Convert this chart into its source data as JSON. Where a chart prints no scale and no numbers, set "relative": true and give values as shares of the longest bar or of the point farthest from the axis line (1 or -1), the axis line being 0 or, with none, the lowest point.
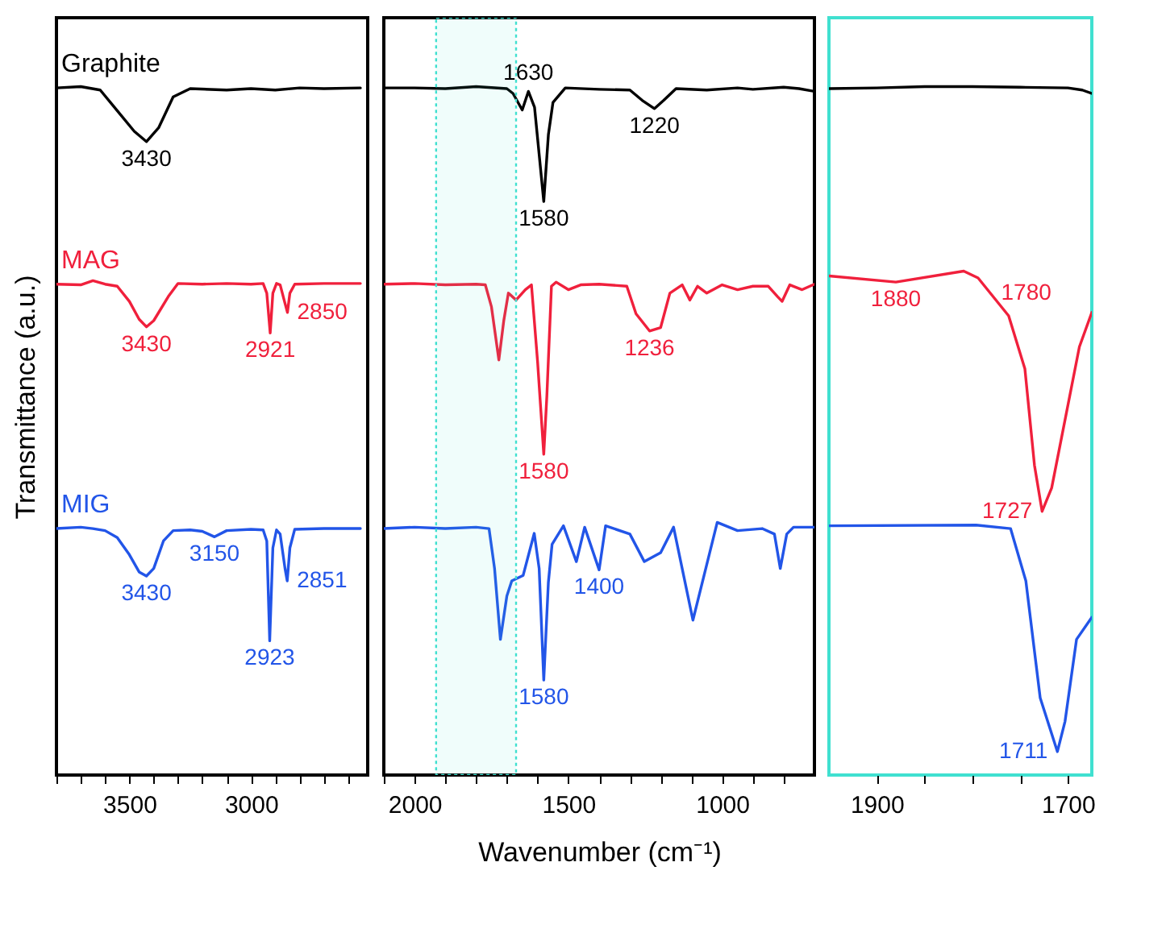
{
  "chart_data": [
    {
      "type": "line",
      "relative": true,
      "ylabel": "Transmittance (a.u.)",
      "xlim": [
        3800,
        2520
      ],
      "xticks": [
        {
          "value": 3800,
          "label": null
        },
        {
          "value": 3700,
          "label": null
        },
        {
          "value": 3600,
          "label": null
        },
        3500,
        {
          "value": 3400,
          "label": null
        },
        {
          "value": 3300,
          "label": null
        },
        {
          "value": 3200,
          "label": null
        },
        {
          "value": 3100,
          "label": null
        },
        3000,
        {
          "value": 2900,
          "label": null
        },
        {
          "value": 2800,
          "label": null
        },
        {
          "value": 2700,
          "label": null
        },
        {
          "value": 2600,
          "label": null
        }
      ],
      "series": [
        {
          "name": "Graphite",
          "color": "#000000",
          "x": [
            3800,
            3700,
            3620,
            3550,
            3480,
            3430,
            3380,
            3320,
            3250,
            3100,
            3000,
            2900,
            2800,
            2700,
            2550
          ],
          "values": [
            0.998,
            1.0,
            0.995,
            0.965,
            0.935,
            0.92,
            0.94,
            0.985,
            0.997,
            0.995,
            0.997,
            0.995,
            0.998,
            0.997,
            0.998
          ]
        },
        {
          "name": "MAG",
          "color": "#f0203c",
          "x": [
            3800,
            3700,
            3650,
            3600,
            3550,
            3500,
            3460,
            3430,
            3400,
            3340,
            3300,
            3200,
            3100,
            3000,
            2950,
            2935,
            2921,
            2910,
            2895,
            2880,
            2860,
            2850,
            2840,
            2820,
            2700,
            2550
          ],
          "values": [
            0.713,
            0.712,
            0.718,
            0.713,
            0.71,
            0.688,
            0.662,
            0.651,
            0.66,
            0.695,
            0.714,
            0.713,
            0.714,
            0.713,
            0.714,
            0.7,
            0.642,
            0.7,
            0.714,
            0.712,
            0.685,
            0.672,
            0.7,
            0.713,
            0.714,
            0.714
          ]
        },
        {
          "name": "MIG",
          "color": "#2255e8",
          "x": [
            3800,
            3700,
            3650,
            3600,
            3550,
            3500,
            3460,
            3430,
            3400,
            3360,
            3320,
            3250,
            3200,
            3150,
            3100,
            3000,
            2950,
            2935,
            2923,
            2910,
            2895,
            2880,
            2860,
            2851,
            2840,
            2820,
            2700,
            2550
          ],
          "values": [
            0.358,
            0.36,
            0.358,
            0.355,
            0.345,
            0.32,
            0.295,
            0.289,
            0.3,
            0.34,
            0.355,
            0.356,
            0.354,
            0.346,
            0.355,
            0.357,
            0.356,
            0.34,
            0.195,
            0.33,
            0.356,
            0.35,
            0.3,
            0.282,
            0.33,
            0.357,
            0.358,
            0.358
          ]
        }
      ],
      "annotations": [
        {
          "text": "3430",
          "x": 3430,
          "y": 0.92
        },
        {
          "text": "3430",
          "x": 3430,
          "y": 0.651
        },
        {
          "text": "2921",
          "x": 2921,
          "y": 0.642
        },
        {
          "text": "2850",
          "x": 2850,
          "y": 0.672
        },
        {
          "text": "3430",
          "x": 3430,
          "y": 0.289
        },
        {
          "text": "3150",
          "x": 3150,
          "y": 0.346
        },
        {
          "text": "2923",
          "x": 2923,
          "y": 0.195
        },
        {
          "text": "2851",
          "x": 2851,
          "y": 0.282
        }
      ]
    },
    {
      "type": "line",
      "relative": true,
      "xlabel": "Wavenumber (cm⁻¹)",
      "xlim": [
        2100,
        700
      ],
      "xticks": [
        {
          "value": 2100,
          "label": null
        },
        2000,
        {
          "value": 1900,
          "label": null
        },
        {
          "value": 1800,
          "label": null
        },
        {
          "value": 1700,
          "label": null
        },
        {
          "value": 1600,
          "label": null
        },
        1500,
        {
          "value": 1400,
          "label": null
        },
        {
          "value": 1300,
          "label": null
        },
        {
          "value": 1200,
          "label": null
        },
        {
          "value": 1100,
          "label": null
        },
        1000,
        {
          "value": 900,
          "label": null
        },
        {
          "value": 800,
          "label": null
        }
      ],
      "series": [
        {
          "color": "#000000",
          "x": [
            2100,
            2000,
            1900,
            1800,
            1700,
            1680,
            1650,
            1630,
            1610,
            1580,
            1565,
            1550,
            1510,
            1400,
            1300,
            1260,
            1220,
            1190,
            1150,
            1050,
            950,
            900,
            800,
            750,
            700
          ],
          "values": [
            0.998,
            0.998,
            0.997,
            1.0,
            0.997,
            0.99,
            0.966,
            0.993,
            0.97,
            0.833,
            0.93,
            0.977,
            0.998,
            0.996,
            0.995,
            0.98,
            0.968,
            0.98,
            0.997,
            0.995,
            0.998,
            0.996,
            0.999,
            0.997,
            0.993
          ]
        },
        {
          "color": "#f0203c",
          "x": [
            2100,
            2000,
            1900,
            1800,
            1770,
            1750,
            1726,
            1710,
            1695,
            1670,
            1640,
            1620,
            1600,
            1580,
            1570,
            1555,
            1540,
            1500,
            1460,
            1400,
            1310,
            1280,
            1236,
            1200,
            1170,
            1130,
            1105,
            1080,
            1050,
            1000,
            950,
            900,
            850,
            820,
            805,
            780,
            740,
            700
          ],
          "values": [
            0.713,
            0.714,
            0.712,
            0.713,
            0.712,
            0.68,
            0.603,
            0.66,
            0.7,
            0.69,
            0.705,
            0.712,
            0.6,
            0.466,
            0.55,
            0.71,
            0.716,
            0.705,
            0.712,
            0.713,
            0.71,
            0.67,
            0.645,
            0.65,
            0.7,
            0.712,
            0.69,
            0.71,
            0.7,
            0.712,
            0.705,
            0.71,
            0.71,
            0.695,
            0.688,
            0.712,
            0.705,
            0.713
          ]
        },
        {
          "color": "#2255e8",
          "x": [
            2100,
            2000,
            1900,
            1800,
            1758,
            1740,
            1721,
            1700,
            1684,
            1647,
            1611,
            1595,
            1580,
            1565,
            1553,
            1516,
            1474,
            1447,
            1400,
            1379,
            1300,
            1253,
            1200,
            1158,
            1095,
            1016,
            950,
            870,
            830,
            811,
            790,
            768,
            700
          ],
          "values": [
            0.358,
            0.36,
            0.358,
            0.36,
            0.358,
            0.3,
            0.197,
            0.26,
            0.282,
            0.29,
            0.351,
            0.3,
            0.138,
            0.28,
            0.335,
            0.362,
            0.31,
            0.36,
            0.298,
            0.362,
            0.35,
            0.31,
            0.323,
            0.36,
            0.225,
            0.367,
            0.355,
            0.358,
            0.35,
            0.3,
            0.35,
            0.36,
            0.36
          ]
        }
      ],
      "bands": [
        {
          "axis": "x",
          "from": 1930,
          "to": 1670,
          "color": "#40e0d0"
        }
      ],
      "annotations": [
        {
          "text": "1630",
          "x": 1630,
          "y": 0.993
        },
        {
          "text": "1580",
          "x": 1580,
          "y": 0.833
        },
        {
          "text": "1220",
          "x": 1220,
          "y": 0.968
        },
        {
          "text": "1580",
          "x": 1580,
          "y": 0.466
        },
        {
          "text": "1236",
          "x": 1236,
          "y": 0.645
        },
        {
          "text": "1400",
          "x": 1400,
          "y": 0.298
        },
        {
          "text": "1580",
          "x": 1580,
          "y": 0.138
        }
      ]
    },
    {
      "type": "line",
      "relative": true,
      "xlim": [
        1950,
        1675
      ],
      "xticks": [
        1900,
        {
          "value": 1850,
          "label": null
        },
        {
          "value": 1800,
          "label": null
        },
        {
          "value": 1750,
          "label": null
        },
        1700
      ],
      "series": [
        {
          "color": "#000000",
          "x": [
            1950,
            1900,
            1850,
            1800,
            1750,
            1700,
            1685,
            1675
          ],
          "values": [
            0.997,
            0.998,
            1.0,
            1.0,
            0.999,
            0.998,
            0.995,
            0.99
          ]
        },
        {
          "color": "#f0203c",
          "x": [
            1950,
            1880,
            1809,
            1794,
            1762,
            1745,
            1735,
            1727,
            1717,
            1688,
            1675
          ],
          "values": [
            0.725,
            0.716,
            0.732,
            0.722,
            0.667,
            0.59,
            0.45,
            0.383,
            0.417,
            0.622,
            0.672
          ]
        },
        {
          "color": "#2255e8",
          "x": [
            1950,
            1796,
            1760,
            1744,
            1729,
            1711,
            1703,
            1691,
            1675
          ],
          "values": [
            0.362,
            0.363,
            0.358,
            0.282,
            0.112,
            0.034,
            0.078,
            0.197,
            0.229
          ]
        }
      ],
      "annotations": [
        {
          "text": "1880",
          "x": 1880,
          "y": 0.716
        },
        {
          "text": "1780",
          "x": 1780,
          "y": 0.7
        },
        {
          "text": "1727",
          "x": 1727,
          "y": 0.383
        },
        {
          "text": "1711",
          "x": 1711,
          "y": 0.034
        }
      ]
    }
  ]
}
